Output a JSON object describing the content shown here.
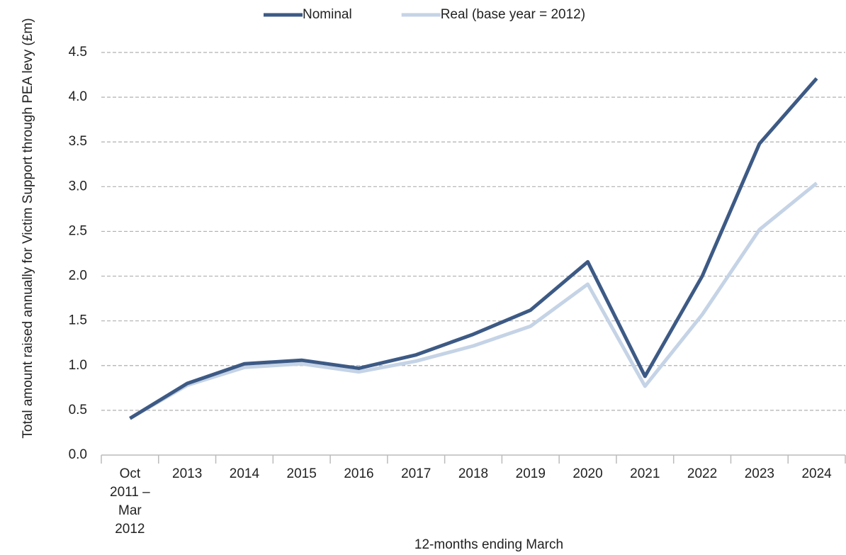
{
  "chart_data": {
    "type": "line",
    "y_label": "Total amount raised annually for Victim Support through PEA levy (£m)",
    "x_label": "12-months ending March",
    "categories": [
      "Oct 2011 – Mar 2012",
      "2013",
      "2014",
      "2015",
      "2016",
      "2017",
      "2018",
      "2019",
      "2020",
      "2021",
      "2022",
      "2023",
      "2024"
    ],
    "series": [
      {
        "name": "Nominal",
        "color": "#3d5a85",
        "values": [
          0.41,
          0.8,
          1.02,
          1.06,
          0.97,
          1.12,
          1.35,
          1.62,
          2.16,
          0.88,
          2.0,
          3.48,
          4.21
        ]
      },
      {
        "name": "Real (base year = 2012)",
        "color": "#c5d3e6",
        "values": [
          0.41,
          0.78,
          0.98,
          1.02,
          0.93,
          1.05,
          1.22,
          1.44,
          1.91,
          0.77,
          1.57,
          2.52,
          3.04
        ]
      }
    ],
    "ylim": [
      0,
      4.5
    ],
    "yticks": [
      {
        "value": 0,
        "label": "0.0"
      },
      {
        "value": 0.5,
        "label": "0.5"
      },
      {
        "value": 1,
        "label": "1.0"
      },
      {
        "value": 1.5,
        "label": "1.5"
      },
      {
        "value": 2,
        "label": "2.0"
      },
      {
        "value": 2.5,
        "label": "2.5"
      },
      {
        "value": 3,
        "label": "3.0"
      },
      {
        "value": 3.5,
        "label": "3.5"
      },
      {
        "value": 4,
        "label": "4.0"
      },
      {
        "value": 4.5,
        "label": "4.5"
      }
    ],
    "grid": true,
    "legend": "top"
  }
}
